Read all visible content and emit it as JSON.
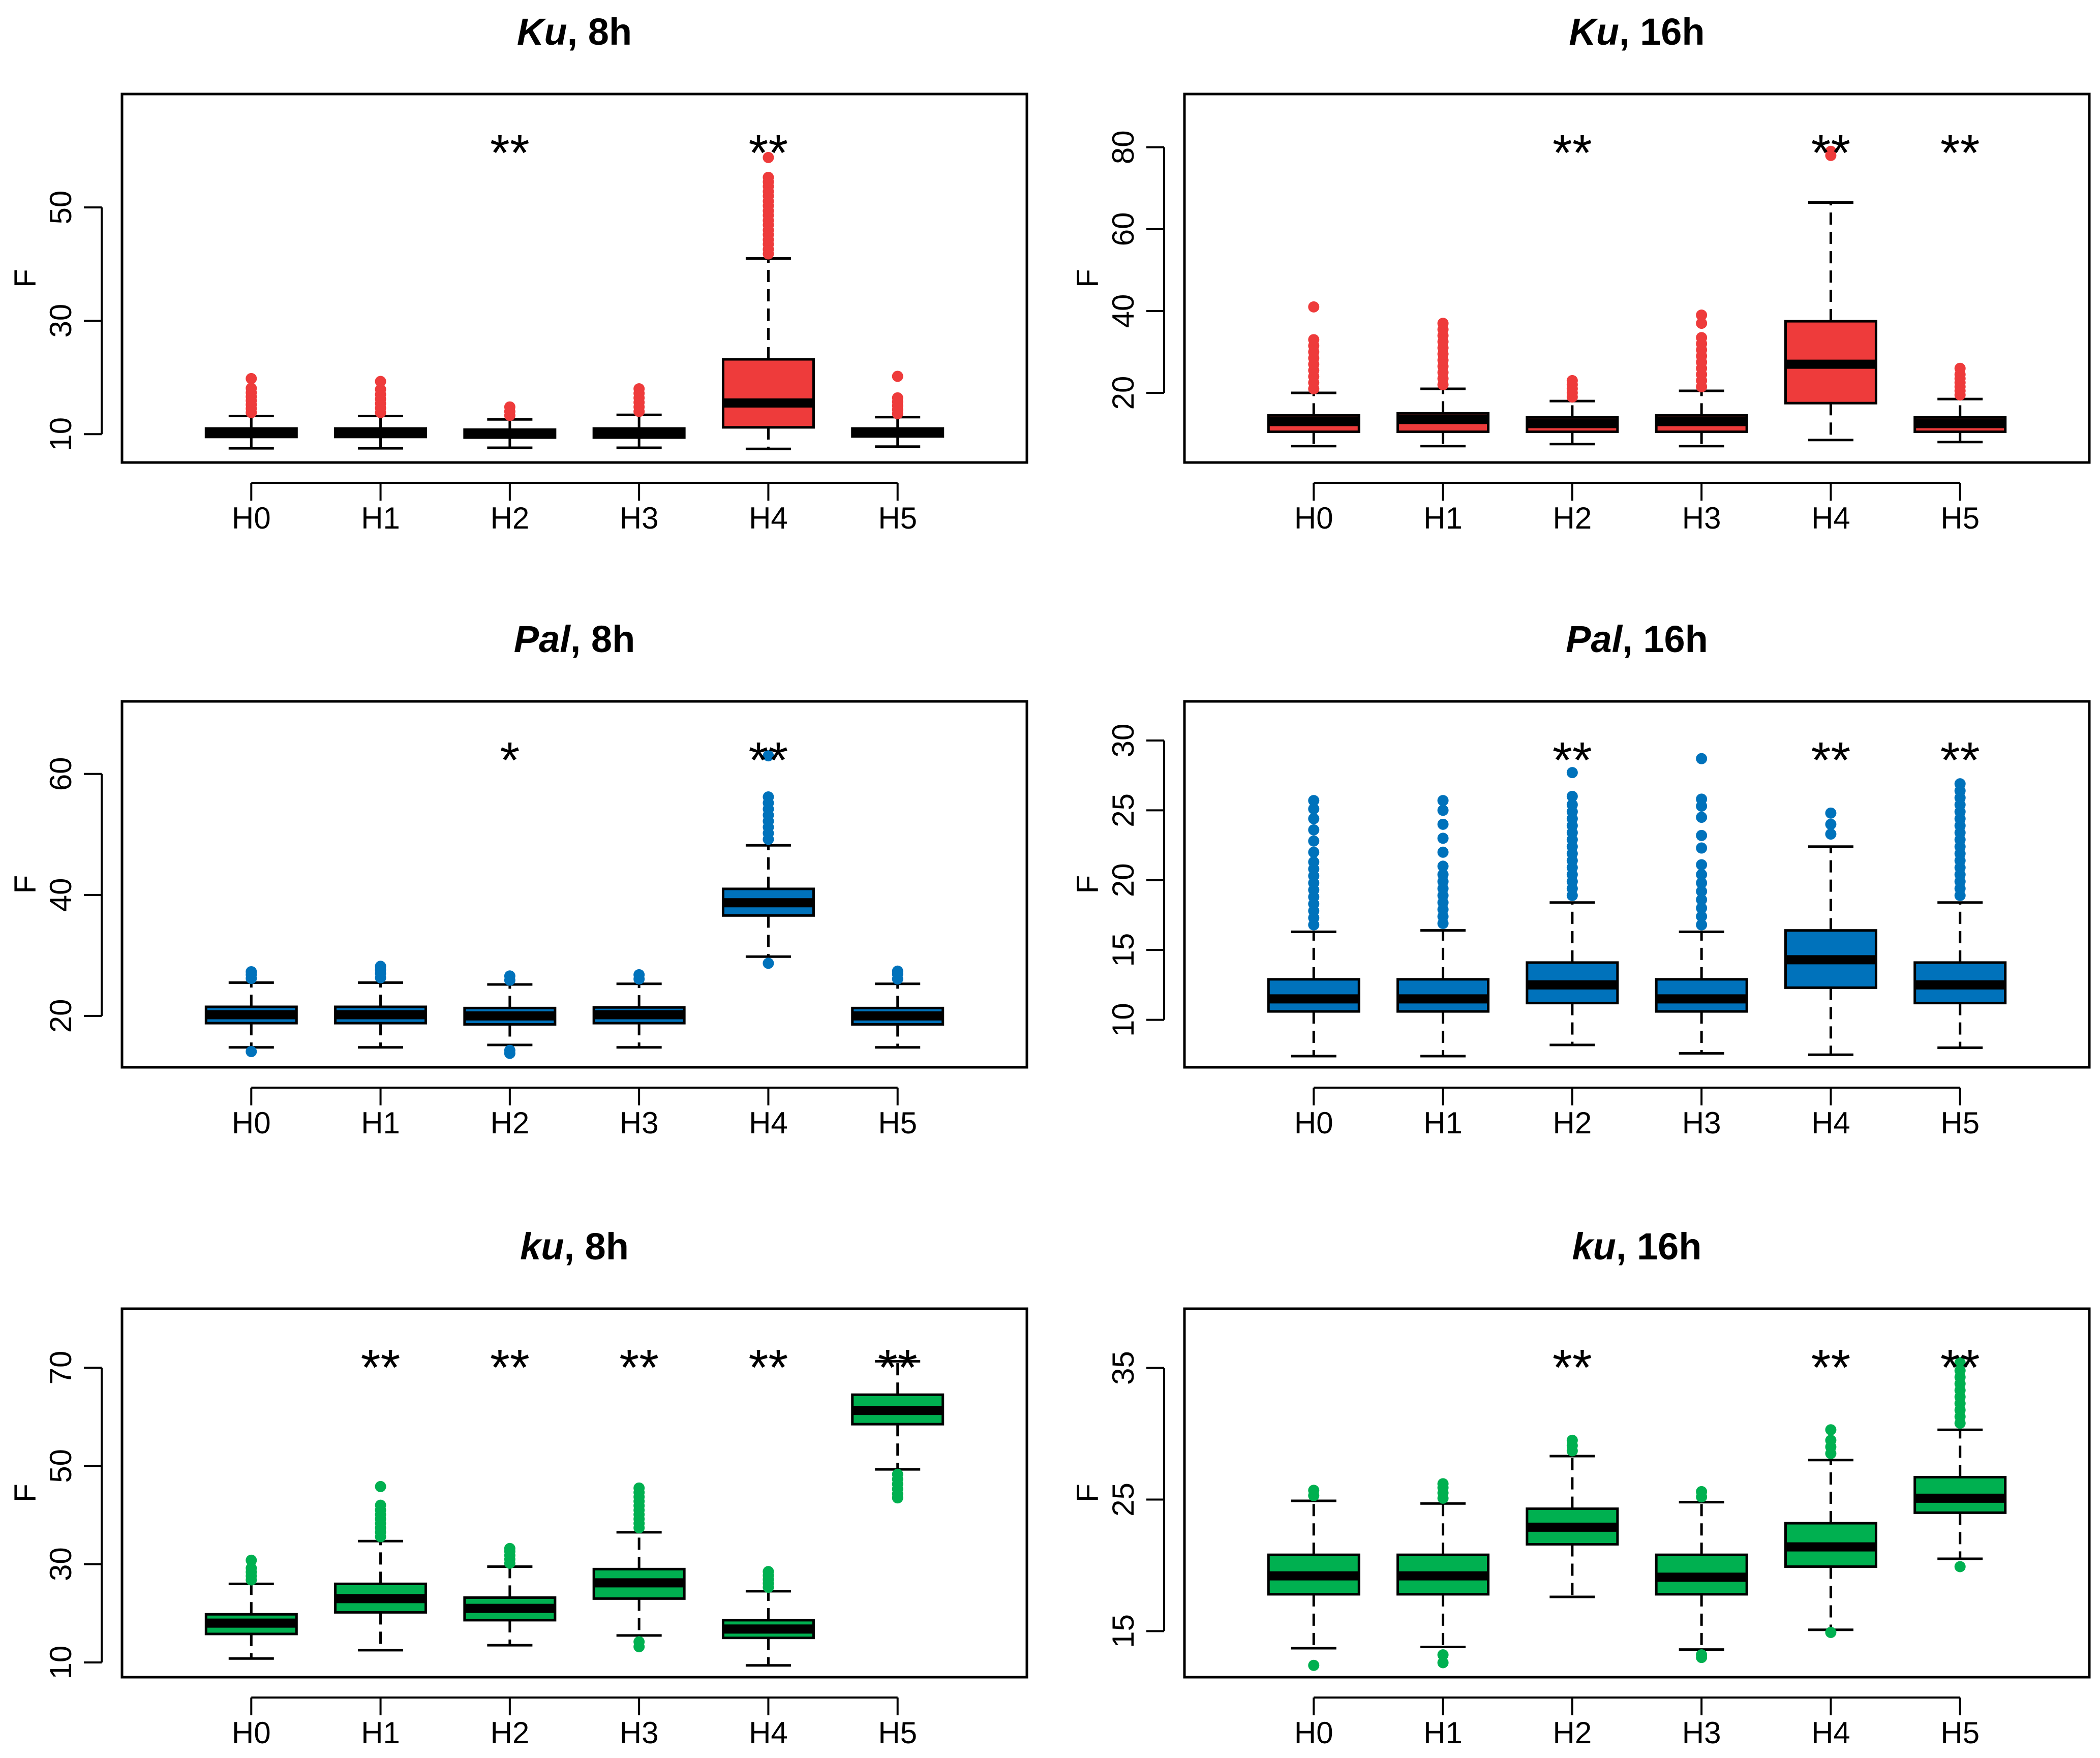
{
  "chart_data": [
    {
      "type": "box",
      "title_italic": "Ku",
      "title_rest": ", 8h",
      "ylabel": "F",
      "color": "#EE3B3B",
      "ylim": [
        5,
        70
      ],
      "yticks": [
        10,
        30,
        50
      ],
      "categories": [
        "H0",
        "H1",
        "H2",
        "H3",
        "H4",
        "H5"
      ],
      "boxes": [
        {
          "lo": 7.5,
          "q1": 9.5,
          "med": 10.2,
          "q3": 11,
          "hi": 13.2,
          "outliers": [
            13.8,
            14.5,
            15.2,
            15.9,
            16.6,
            17.3,
            18.1,
            19.8
          ],
          "sig": ""
        },
        {
          "lo": 7.5,
          "q1": 9.5,
          "med": 10.3,
          "q3": 11,
          "hi": 13.2,
          "outliers": [
            13.8,
            14.6,
            15.4,
            16.2,
            17,
            17.9,
            19.3
          ],
          "sig": ""
        },
        {
          "lo": 7.6,
          "q1": 9.4,
          "med": 10,
          "q3": 10.8,
          "hi": 12.6,
          "outliers": [
            13.3,
            14,
            14.8
          ],
          "sig": "**"
        },
        {
          "lo": 7.6,
          "q1": 9.4,
          "med": 10.1,
          "q3": 11,
          "hi": 13.4,
          "outliers": [
            14,
            14.8,
            15.6,
            16.4,
            17.2,
            18
          ],
          "sig": ""
        },
        {
          "lo": 7.4,
          "q1": 11.2,
          "med": 15.5,
          "q3": 23.2,
          "hi": 41,
          "outliers": [
            41.8,
            42.6,
            43.5,
            44.3,
            45.2,
            46,
            46.9,
            47.7,
            48.6,
            49.4,
            50.3,
            51.1,
            52,
            52.8,
            53.7,
            54.5,
            55.3,
            58.8
          ],
          "sig": "**"
        },
        {
          "lo": 7.8,
          "q1": 9.6,
          "med": 10.3,
          "q3": 11,
          "hi": 13,
          "outliers": [
            13.6,
            14.3,
            15,
            15.7,
            16.4,
            20.2
          ],
          "sig": ""
        }
      ]
    },
    {
      "type": "box",
      "title_italic": "Ku",
      "title_rest": ", 16h",
      "ylabel": "F",
      "color": "#EE3B3B",
      "ylim": [
        3,
        93
      ],
      "yticks": [
        20,
        40,
        60,
        80
      ],
      "categories": [
        "H0",
        "H1",
        "H2",
        "H3",
        "H4",
        "H5"
      ],
      "boxes": [
        {
          "lo": 7,
          "q1": 10.5,
          "med": 13,
          "q3": 14.5,
          "hi": 20,
          "outliers": [
            21,
            22.5,
            24,
            25.5,
            27,
            28.5,
            30,
            31.5,
            33,
            41
          ],
          "sig": ""
        },
        {
          "lo": 7,
          "q1": 10.5,
          "med": 13.5,
          "q3": 15,
          "hi": 21,
          "outliers": [
            22,
            23.5,
            25,
            26.5,
            28,
            29.5,
            31,
            32.5,
            34,
            35.5,
            37
          ],
          "sig": ""
        },
        {
          "lo": 7.5,
          "q1": 10.5,
          "med": 12.5,
          "q3": 14,
          "hi": 18,
          "outliers": [
            19,
            20,
            21,
            22,
            23
          ],
          "sig": "**"
        },
        {
          "lo": 7,
          "q1": 10.5,
          "med": 13,
          "q3": 14.5,
          "hi": 20.5,
          "outliers": [
            21.5,
            23,
            24.5,
            26,
            27.5,
            29,
            30.5,
            32,
            33.5,
            37,
            39
          ],
          "sig": ""
        },
        {
          "lo": 8.5,
          "q1": 17.5,
          "med": 27,
          "q3": 37.5,
          "hi": 66.5,
          "outliers": [
            78,
            79
          ],
          "sig": "**"
        },
        {
          "lo": 8,
          "q1": 10.5,
          "med": 12.5,
          "q3": 14,
          "hi": 18.5,
          "outliers": [
            19.5,
            20.5,
            21.5,
            22.5,
            23.5,
            24.5,
            26
          ],
          "sig": "**"
        }
      ]
    },
    {
      "type": "box",
      "title_italic": "Pal",
      "title_rest": ", 8h",
      "ylabel": "F",
      "color": "#0072BB",
      "ylim": [
        11.5,
        72
      ],
      "yticks": [
        20,
        40,
        60
      ],
      "categories": [
        "H0",
        "H1",
        "H2",
        "H3",
        "H4",
        "H5"
      ],
      "boxes": [
        {
          "lo": 14.8,
          "q1": 18.8,
          "med": 20.2,
          "q3": 21.5,
          "hi": 25.5,
          "outliers": [
            26.2,
            26.8,
            27.3,
            14.1
          ],
          "sig": ""
        },
        {
          "lo": 14.8,
          "q1": 18.8,
          "med": 20.2,
          "q3": 21.5,
          "hi": 25.5,
          "outliers": [
            26.3,
            27,
            27.6,
            28.2
          ],
          "sig": ""
        },
        {
          "lo": 15.2,
          "q1": 18.6,
          "med": 20,
          "q3": 21.3,
          "hi": 25.2,
          "outliers": [
            25.9,
            26.6,
            14.3,
            13.8
          ],
          "sig": "*"
        },
        {
          "lo": 14.8,
          "q1": 18.8,
          "med": 20.2,
          "q3": 21.4,
          "hi": 25.3,
          "outliers": [
            26.1,
            26.8
          ],
          "sig": ""
        },
        {
          "lo": 29.8,
          "q1": 36.6,
          "med": 38.7,
          "q3": 41,
          "hi": 48.2,
          "outliers": [
            49.2,
            50.2,
            51.2,
            52.2,
            53.2,
            54.2,
            55.2,
            56.2,
            63,
            28.7
          ],
          "sig": "**"
        },
        {
          "lo": 14.8,
          "q1": 18.6,
          "med": 20,
          "q3": 21.3,
          "hi": 25.3,
          "outliers": [
            26.1,
            26.9,
            27.4
          ],
          "sig": ""
        }
      ]
    },
    {
      "type": "box",
      "title_italic": "Pal",
      "title_rest": ", 16h",
      "ylabel": "F",
      "color": "#0072BB",
      "ylim": [
        6.6,
        32.8
      ],
      "yticks": [
        10,
        15,
        20,
        25,
        30
      ],
      "categories": [
        "H0",
        "H1",
        "H2",
        "H3",
        "H4",
        "H5"
      ],
      "boxes": [
        {
          "lo": 7.4,
          "q1": 10.6,
          "med": 11.5,
          "q3": 12.9,
          "hi": 16.3,
          "outliers": [
            16.8,
            17.3,
            17.8,
            18.3,
            18.8,
            19.3,
            19.8,
            20.3,
            20.8,
            21.3,
            22,
            22.8,
            23.6,
            24.4,
            25.1,
            25.7
          ],
          "sig": ""
        },
        {
          "lo": 7.4,
          "q1": 10.6,
          "med": 11.5,
          "q3": 12.9,
          "hi": 16.4,
          "outliers": [
            16.9,
            17.4,
            17.9,
            18.4,
            18.9,
            19.4,
            19.9,
            20.4,
            21,
            22,
            23,
            24,
            25,
            25.7
          ],
          "sig": ""
        },
        {
          "lo": 8.2,
          "q1": 11.2,
          "med": 12.5,
          "q3": 14.1,
          "hi": 18.4,
          "outliers": [
            18.9,
            19.4,
            19.9,
            20.4,
            20.9,
            21.4,
            21.9,
            22.4,
            22.9,
            23.4,
            23.9,
            24.4,
            24.9,
            25.4,
            26,
            27.7
          ],
          "sig": "**"
        },
        {
          "lo": 7.6,
          "q1": 10.6,
          "med": 11.5,
          "q3": 12.9,
          "hi": 16.3,
          "outliers": [
            16.8,
            17.4,
            18,
            18.6,
            19.2,
            19.8,
            20.4,
            21.1,
            22.3,
            23.2,
            24.5,
            25.3,
            25.8,
            28.7
          ],
          "sig": ""
        },
        {
          "lo": 7.5,
          "q1": 12.3,
          "med": 14.3,
          "q3": 16.4,
          "hi": 22.4,
          "outliers": [
            23.3,
            24,
            24.8
          ],
          "sig": "**"
        },
        {
          "lo": 8,
          "q1": 11.2,
          "med": 12.5,
          "q3": 14.1,
          "hi": 18.4,
          "outliers": [
            18.9,
            19.4,
            19.9,
            20.4,
            20.9,
            21.4,
            21.9,
            22.4,
            22.9,
            23.4,
            23.9,
            24.4,
            24.9,
            25.4,
            25.9,
            26.4,
            26.9
          ],
          "sig": "**"
        }
      ]
    },
    {
      "type": "box",
      "title_italic": "ku",
      "title_rest": ", 8h",
      "ylabel": "F",
      "color": "#00B050",
      "ylim": [
        7,
        82
      ],
      "yticks": [
        10,
        30,
        50,
        70
      ],
      "categories": [
        "H0",
        "H1",
        "H2",
        "H3",
        "H4",
        "H5"
      ],
      "boxes": [
        {
          "lo": 10.8,
          "q1": 15.8,
          "med": 18,
          "q3": 19.8,
          "hi": 26,
          "outliers": [
            26.8,
            27.6,
            28.4,
            29.2,
            30.8
          ],
          "sig": ""
        },
        {
          "lo": 12.5,
          "q1": 20.2,
          "med": 23,
          "q3": 26,
          "hi": 34.7,
          "outliers": [
            35.6,
            36.5,
            37.4,
            38.3,
            39.2,
            40.1,
            41,
            42,
            45.8
          ],
          "sig": "**"
        },
        {
          "lo": 13.5,
          "q1": 18.6,
          "med": 21,
          "q3": 23.2,
          "hi": 29.5,
          "outliers": [
            30.2,
            31,
            31.8,
            32.6,
            33.2
          ],
          "sig": "**"
        },
        {
          "lo": 15.5,
          "q1": 23,
          "med": 26.2,
          "q3": 29,
          "hi": 36.5,
          "outliers": [
            37.4,
            38.3,
            39.2,
            40.1,
            41,
            41.9,
            42.8,
            43.7,
            44.6,
            45.5,
            14.2,
            13.2
          ],
          "sig": "**"
        },
        {
          "lo": 9.4,
          "q1": 15,
          "med": 16.8,
          "q3": 18.6,
          "hi": 24.5,
          "outliers": [
            25.3,
            26.1,
            26.9,
            27.7,
            28.5
          ],
          "sig": "**"
        },
        {
          "lo": 49.3,
          "q1": 58.5,
          "med": 61.3,
          "q3": 64.5,
          "hi": 71.3,
          "outliers": [
            48.3,
            47.3,
            46.3,
            45.3,
            44.3,
            43.5
          ],
          "sig": "**"
        }
      ]
    },
    {
      "type": "box",
      "title_italic": "ku",
      "title_rest": ", 16h",
      "ylabel": "F",
      "color": "#00B050",
      "ylim": [
        11.5,
        39.5
      ],
      "yticks": [
        15,
        25,
        35
      ],
      "categories": [
        "H0",
        "H1",
        "H2",
        "H3",
        "H4",
        "H5"
      ],
      "boxes": [
        {
          "lo": 13.7,
          "q1": 17.8,
          "med": 19.2,
          "q3": 20.8,
          "hi": 24.9,
          "outliers": [
            25.3,
            25.7,
            12.4
          ],
          "sig": ""
        },
        {
          "lo": 13.8,
          "q1": 17.8,
          "med": 19.2,
          "q3": 20.8,
          "hi": 24.7,
          "outliers": [
            25.1,
            25.5,
            25.9,
            26.2,
            13.2,
            12.6
          ],
          "sig": ""
        },
        {
          "lo": 17.6,
          "q1": 21.6,
          "med": 22.9,
          "q3": 24.3,
          "hi": 28.3,
          "outliers": [
            28.7,
            29.1,
            29.5
          ],
          "sig": "**"
        },
        {
          "lo": 13.6,
          "q1": 17.8,
          "med": 19.1,
          "q3": 20.8,
          "hi": 24.8,
          "outliers": [
            25.2,
            25.6,
            13.2,
            13
          ],
          "sig": ""
        },
        {
          "lo": 15.1,
          "q1": 19.9,
          "med": 21.4,
          "q3": 23.2,
          "hi": 28,
          "outliers": [
            28.5,
            29,
            29.5,
            30.3,
            14.9
          ],
          "sig": "**"
        },
        {
          "lo": 20.5,
          "q1": 24,
          "med": 25.1,
          "q3": 26.7,
          "hi": 30.3,
          "outliers": [
            30.8,
            31.3,
            31.8,
            32.3,
            32.8,
            33.3,
            33.8,
            34.3,
            34.8,
            35.4,
            19.9
          ],
          "sig": "**"
        }
      ]
    }
  ]
}
